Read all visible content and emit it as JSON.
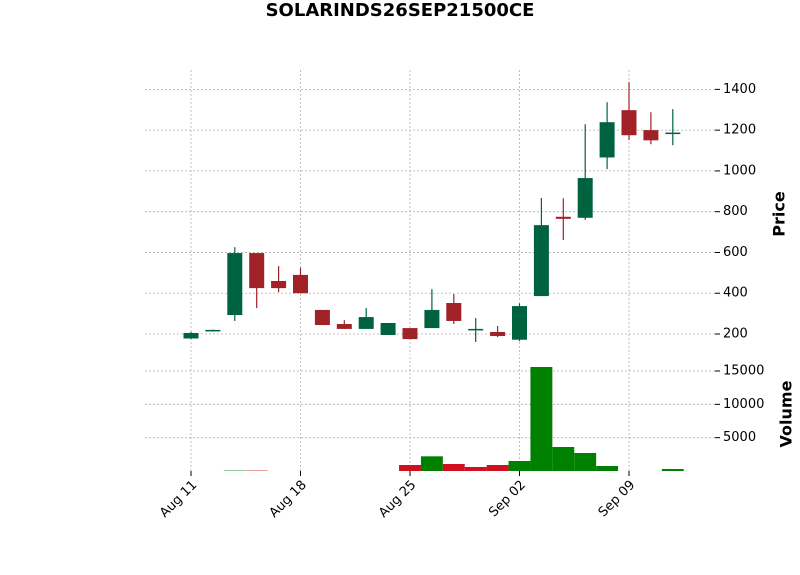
{
  "chart_data": {
    "type": "candlestick",
    "title": "SOLARINDS26SEP21500CE",
    "categories": [
      "Aug 11",
      null,
      null,
      null,
      null,
      "Aug 18",
      null,
      null,
      null,
      null,
      "Aug 25",
      null,
      null,
      null,
      null,
      "Sep 02",
      null,
      null,
      null,
      null,
      "Sep 09",
      null,
      null
    ],
    "open": [
      178,
      215,
      293,
      597,
      460,
      490,
      318,
      249,
      225,
      195,
      229,
      229,
      352,
      222,
      210,
      172,
      386,
      775,
      770,
      1066,
      1298,
      1200,
      1185
    ],
    "high": [
      210,
      222,
      626,
      597,
      533,
      525,
      318,
      268,
      327,
      254,
      229,
      420,
      396,
      278,
      239,
      350,
      867,
      866,
      1229,
      1337,
      1435,
      1288,
      1303
    ],
    "low": [
      175,
      212,
      264,
      327,
      405,
      400,
      244,
      225,
      225,
      195,
      175,
      229,
      249,
      161,
      185,
      165,
      386,
      661,
      760,
      1009,
      1151,
      1131,
      1126
    ],
    "close": [
      205,
      220,
      597,
      425,
      425,
      400,
      244,
      225,
      283,
      254,
      175,
      318,
      264,
      225,
      190,
      337,
      734,
      765,
      965,
      1239,
      1175,
      1150,
      1188
    ],
    "volume": [
      0,
      0,
      60,
      60,
      0,
      0,
      0,
      0,
      0,
      0,
      900,
      2200,
      1050,
      600,
      900,
      1500,
      15600,
      3600,
      2700,
      750,
      0,
      0,
      300
    ],
    "volume_colors": [
      "#008000",
      "#008000",
      "#008000",
      "#d0101e",
      "#008000",
      "#008000",
      "#008000",
      "#008000",
      "#008000",
      "#008000",
      "#d0101e",
      "#008000",
      "#d0101e",
      "#d0101e",
      "#d0101e",
      "#008000",
      "#008000",
      "#008000",
      "#008000",
      "#008000",
      "#008000",
      "#008000",
      "#008000"
    ],
    "up_color": "#006340",
    "down_color": "#a02128",
    "ylabel": "Price",
    "ylim": [
      97,
      1495
    ],
    "yticks": [
      200,
      400,
      600,
      800,
      1000,
      1200,
      1400
    ],
    "volume_label": "Volume",
    "volume_ylim": [
      0,
      17100
    ],
    "volume_yticks": [
      5000,
      10000,
      15000
    ],
    "grid": true
  }
}
